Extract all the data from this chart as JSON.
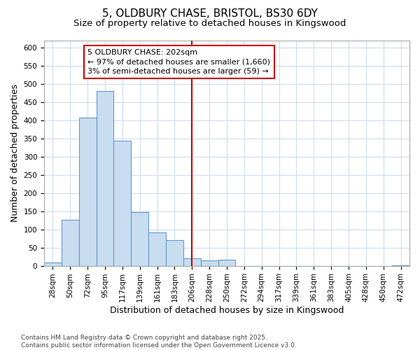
{
  "title_line1": "5, OLDBURY CHASE, BRISTOL, BS30 6DY",
  "title_line2": "Size of property relative to detached houses in Kingswood",
  "xlabel": "Distribution of detached houses by size in Kingswood",
  "ylabel": "Number of detached properties",
  "bar_color": "#c8ddf0",
  "bar_edge_color": "#6699cc",
  "background_color": "#ffffff",
  "plot_bg_color": "#ffffff",
  "grid_color": "#ccddee",
  "categories": [
    "28sqm",
    "50sqm",
    "72sqm",
    "95sqm",
    "117sqm",
    "139sqm",
    "161sqm",
    "183sqm",
    "206sqm",
    "228sqm",
    "250sqm",
    "272sqm",
    "294sqm",
    "317sqm",
    "339sqm",
    "361sqm",
    "383sqm",
    "405sqm",
    "428sqm",
    "450sqm",
    "472sqm"
  ],
  "values": [
    8,
    127,
    408,
    481,
    343,
    148,
    92,
    70,
    20,
    15,
    16,
    0,
    0,
    0,
    0,
    0,
    0,
    0,
    0,
    0,
    2
  ],
  "vline_x": 8.0,
  "vline_color": "#cc0000",
  "annotation_text": "5 OLDBURY CHASE: 202sqm\n← 97% of detached houses are smaller (1,660)\n3% of semi-detached houses are larger (59) →",
  "annotation_box_facecolor": "#ffffff",
  "annotation_box_edgecolor": "#cc0000",
  "ylim": [
    0,
    620
  ],
  "yticks": [
    0,
    50,
    100,
    150,
    200,
    250,
    300,
    350,
    400,
    450,
    500,
    550,
    600
  ],
  "footer": "Contains HM Land Registry data © Crown copyright and database right 2025.\nContains public sector information licensed under the Open Government Licence v3.0.",
  "title_fontsize": 11,
  "subtitle_fontsize": 9.5,
  "tick_fontsize": 7.5,
  "axis_label_fontsize": 9,
  "annotation_fontsize": 8,
  "footer_fontsize": 6.5
}
